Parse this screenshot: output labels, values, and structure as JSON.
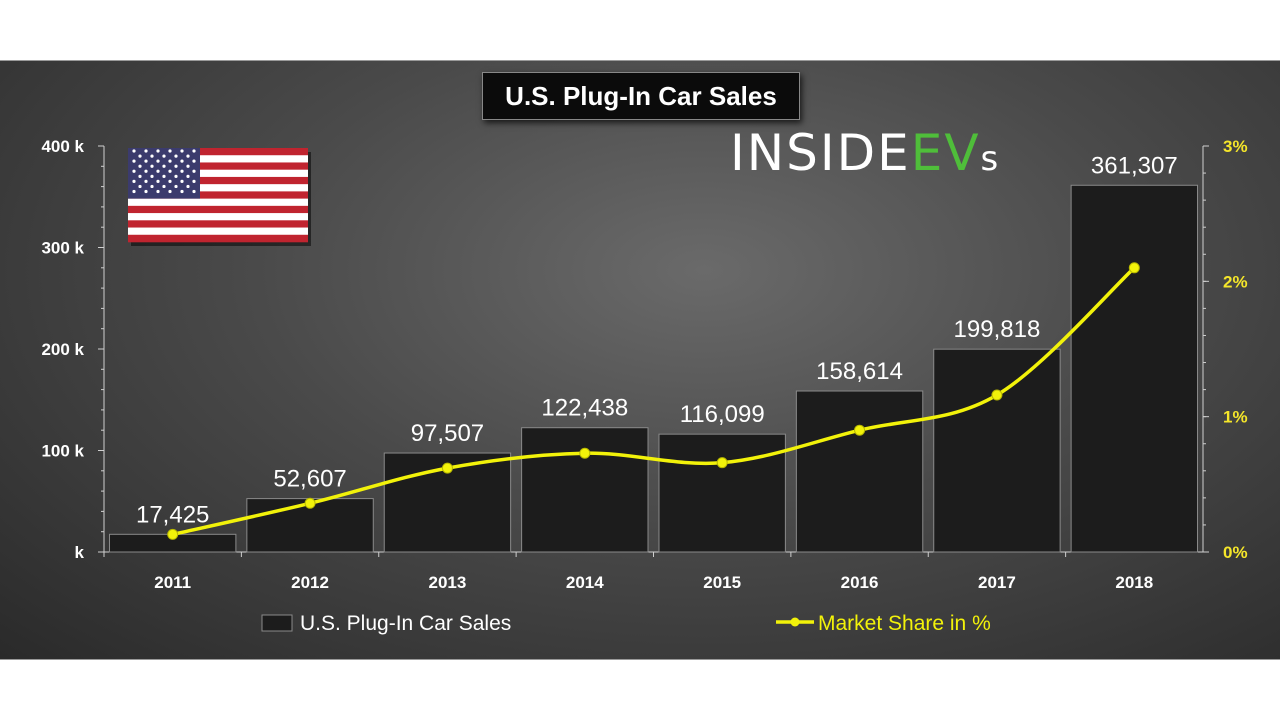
{
  "title": "U.S. Plug-In Car Sales",
  "logo": {
    "main": "INSIDE",
    "accent": "EV",
    "suffix": "s"
  },
  "colors": {
    "bar": "#1c1c1c",
    "line": "#f2f20a",
    "accent_green": "#4fbe3a",
    "text": "#ffffff",
    "right_axis_text": "#f5e62a"
  },
  "chart_data": {
    "type": "bar",
    "title": "U.S. Plug-In Car Sales",
    "categories": [
      "2011",
      "2012",
      "2013",
      "2014",
      "2015",
      "2016",
      "2017",
      "2018"
    ],
    "series": [
      {
        "name": "U.S. Plug-In Car Sales",
        "type": "bar",
        "axis": "left",
        "values": [
          17425,
          52607,
          97507,
          122438,
          116099,
          158614,
          199818,
          361307
        ],
        "labels": [
          "17,425",
          "52,607",
          "97,507",
          "122,438",
          "116,099",
          "158,614",
          "199,818",
          "361,307"
        ]
      },
      {
        "name": "Market Share in %",
        "type": "line",
        "axis": "right",
        "values": [
          0.13,
          0.36,
          0.62,
          0.73,
          0.66,
          0.9,
          1.16,
          2.1
        ]
      }
    ],
    "y_left": {
      "ylim": [
        0,
        400000
      ],
      "ticks": [
        0,
        100000,
        200000,
        300000,
        400000
      ],
      "tick_labels": [
        "k",
        "100 k",
        "200 k",
        "300 k",
        "400 k"
      ]
    },
    "y_right": {
      "ylim": [
        0,
        3
      ],
      "ticks": [
        0,
        1,
        2,
        3
      ],
      "tick_labels": [
        "0%",
        "1%",
        "2%",
        "3%"
      ]
    },
    "grid": false,
    "legend_position": "bottom"
  }
}
